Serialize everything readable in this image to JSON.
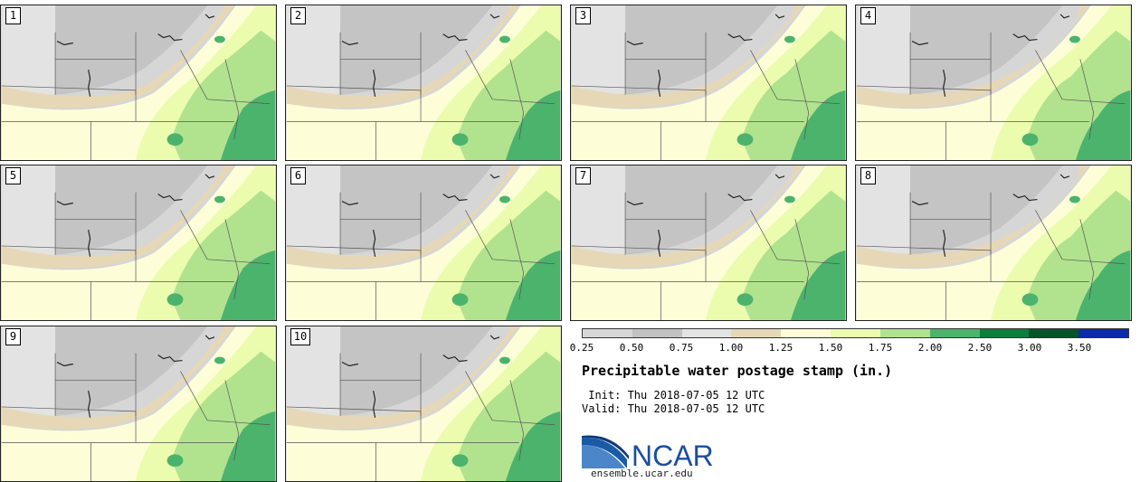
{
  "panels": [
    "1",
    "2",
    "3",
    "4",
    "5",
    "6",
    "7",
    "8",
    "9",
    "10"
  ],
  "colorbar": {
    "colors": [
      "#d7d7d7",
      "#c2c2c2",
      "#e3e3e3",
      "#e6d8b7",
      "#fdfdd7",
      "#ecfcaf",
      "#b1e38f",
      "#4cb36d",
      "#0b7e3c",
      "#06542a",
      "#0b2bab"
    ],
    "ticks": [
      "0.25",
      "0.50",
      "0.75",
      "1.00",
      "1.25",
      "1.50",
      "1.75",
      "2.00",
      "2.50",
      "3.00",
      "3.50"
    ]
  },
  "title": "Precipitable water postage stamp (in.)",
  "init": " Init: Thu 2018-07-05 12 UTC",
  "valid": "Valid: Thu 2018-07-05 12 UTC",
  "logo_text": "NCAR",
  "site": "ensemble.ucar.edu"
}
